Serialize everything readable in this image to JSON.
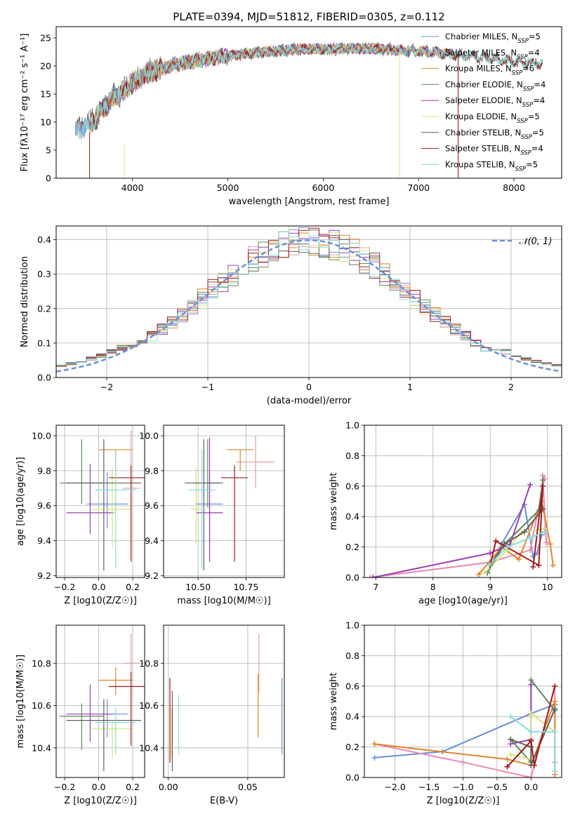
{
  "title": "PLATE=0394, MJD=51812, FIBERID=0305, z=0.112",
  "colors": {
    "Chabrier MILES": "#6a8fd4",
    "Salpeter MILES": "#e0a0a0",
    "Kroupa MILES": "#e0852a",
    "Chabrier ELODIE": "#5c8a5c",
    "Salpeter ELODIE": "#9a3fb0",
    "Kroupa ELODIE": "#dde07a",
    "Chabrier STELIB": "#606060",
    "Salpeter STELIB": "#a01c1c",
    "Kroupa STELIB": "#88dcdc",
    "normal": "#6a8fd4",
    "pink": "#e88ab8"
  },
  "chart_data": [
    {
      "id": "spectrum",
      "type": "line",
      "xlabel": "wavelength [Angstrom, rest frame]",
      "ylabel": "Flux [fλ10⁻¹⁷ erg cm⁻² s⁻¹ A⁻¹]",
      "xlim": [
        3200,
        8500
      ],
      "ylim": [
        0,
        27
      ],
      "xticks": [
        4000,
        5000,
        6000,
        7000,
        8000
      ],
      "yticks": [
        0,
        5,
        10,
        15,
        20,
        25
      ],
      "grid": false,
      "legend_position": "top-right",
      "continuum_x": [
        3400,
        3500,
        3600,
        3700,
        3800,
        3900,
        4000,
        4100,
        4200,
        4300,
        4400,
        4600,
        4800,
        5000,
        5200,
        5400,
        5600,
        5800,
        6000,
        6200,
        6400,
        6600,
        6800,
        7000,
        7200,
        7400,
        7600,
        7800,
        8000,
        8250
      ],
      "continuum_y": [
        8.5,
        9.2,
        10.5,
        12.5,
        14.5,
        15.5,
        17.0,
        18.2,
        19.0,
        19.6,
        20.0,
        20.8,
        21.3,
        21.8,
        22.2,
        22.5,
        22.8,
        23.0,
        23.0,
        23.1,
        23.1,
        23.0,
        22.8,
        22.6,
        22.4,
        22.0,
        21.6,
        21.2,
        20.8,
        20.4
      ],
      "series": [
        {
          "name": "Chabrier MILES, N$_{SSP}$=5",
          "label_main": "Chabrier MILES, N",
          "label_sub": "SSP",
          "label_end": "=5",
          "range": [
            3400,
            7400
          ]
        },
        {
          "name": "Salpeter MILES, N$_{SSP}$=4",
          "label_main": "Salpeter MILES, N",
          "label_sub": "SSP",
          "label_end": "=4",
          "range": [
            3400,
            7400
          ]
        },
        {
          "name": "Kroupa MILES, N$_{SSP}$=6",
          "label_main": "Kroupa MILES, N",
          "label_sub": "SSP",
          "label_end": "=6",
          "range": [
            3550,
            7400
          ]
        },
        {
          "name": "Chabrier ELODIE, N$_{SSP}$=4",
          "label_main": "Chabrier ELODIE, N",
          "label_sub": "SSP",
          "label_end": "=4",
          "range": [
            3900,
            6800
          ]
        },
        {
          "name": "Salpeter ELODIE, N$_{SSP}$=4",
          "label_main": "Salpeter ELODIE, N",
          "label_sub": "SSP",
          "label_end": "=4",
          "range": [
            3900,
            6800
          ]
        },
        {
          "name": "Kroupa ELODIE, N$_{SSP}$=5",
          "label_main": "Kroupa ELODIE, N",
          "label_sub": "SSP",
          "label_end": "=5",
          "range": [
            3900,
            6800
          ]
        },
        {
          "name": "Chabrier STELIB, N$_{SSP}$=5",
          "label_main": "Chabrier STELIB, N",
          "label_sub": "SSP",
          "label_end": "=5",
          "range": [
            3400,
            8300
          ]
        },
        {
          "name": "Salpeter STELIB, N$_{SSP}$=4",
          "label_main": "Salpeter STELIB, N",
          "label_sub": "SSP",
          "label_end": "=4",
          "range": [
            3550,
            8300
          ]
        },
        {
          "name": "Kroupa STELIB, N$_{SSP}$=5",
          "label_main": "Kroupa STELIB, N",
          "label_sub": "SSP",
          "label_end": "=5",
          "range": [
            3400,
            8300
          ]
        }
      ]
    },
    {
      "id": "residuals",
      "type": "histogram",
      "xlabel": "(data-model)/error",
      "ylabel": "Normed distribution",
      "xlim": [
        -2.5,
        2.5
      ],
      "ylim": [
        0,
        0.44
      ],
      "xticks": [
        -2,
        -1,
        0,
        1,
        2
      ],
      "yticks": [
        0.0,
        0.1,
        0.2,
        0.3,
        0.4
      ],
      "grid": true,
      "legend_position": "top-right",
      "legend_label": "𝒩(0, 1)",
      "bin_width": 0.1,
      "series_count": 9
    },
    {
      "id": "age_vs_Z",
      "type": "errorbar",
      "xlabel": "Z [log10(Z/Z☉)]",
      "ylabel": "age  [log10(age/yr)]",
      "xlim": [
        -0.25,
        0.27
      ],
      "ylim": [
        9.19,
        10.06
      ],
      "xticks": [
        -0.2,
        0.0,
        0.2
      ],
      "xticklabels": [
        "−0.2",
        "0.0",
        "0.2"
      ],
      "yticks": [
        9.2,
        9.4,
        9.6,
        9.8,
        10.0
      ],
      "grid": true,
      "points": [
        {
          "series": "Chabrier MILES",
          "x": 0.05,
          "xerr": 0.12,
          "y": 9.61,
          "yerr": [
            0.14,
            0.18
          ]
        },
        {
          "series": "Salpeter MILES",
          "x": 0.19,
          "xerr": 0.05,
          "y": 9.7,
          "yerr": [
            0.37,
            0.33
          ]
        },
        {
          "series": "Kroupa MILES",
          "x": 0.1,
          "xerr": 0.1,
          "y": 9.92,
          "yerr": [
            0.12,
            0.0
          ]
        },
        {
          "series": "Chabrier ELODIE",
          "x": -0.1,
          "xerr": 0.13,
          "y": 9.73,
          "yerr": [
            0.12,
            0.25
          ]
        },
        {
          "series": "Salpeter ELODIE",
          "x": -0.05,
          "xerr": 0.14,
          "y": 9.56,
          "yerr": [
            0.12,
            0.28
          ]
        },
        {
          "series": "Kroupa ELODIE",
          "x": 0.08,
          "xerr": 0.12,
          "y": 9.58,
          "yerr": [
            0.22,
            0.24
          ]
        },
        {
          "series": "Chabrier STELIB",
          "x": 0.03,
          "xerr": 0.22,
          "y": 9.73,
          "yerr": [
            0.5,
            0.25
          ]
        },
        {
          "series": "Salpeter STELIB",
          "x": 0.19,
          "xerr": 0.13,
          "y": 9.76,
          "yerr": [
            0.48,
            0.07
          ]
        },
        {
          "series": "Kroupa STELIB",
          "x": 0.1,
          "xerr": 0.12,
          "y": 9.69,
          "yerr": [
            0.45,
            0.23
          ]
        }
      ]
    },
    {
      "id": "age_vs_mass",
      "type": "errorbar",
      "xlabel": "mass [log10(M/M☉)]",
      "ylabel": "",
      "xlim": [
        10.32,
        10.95
      ],
      "ylim": [
        9.19,
        10.06
      ],
      "xticks": [
        10.5,
        10.75
      ],
      "xticklabels": [
        "10.50",
        "10.75"
      ],
      "yticks": [
        9.2,
        9.4,
        9.6,
        9.8,
        10.0
      ],
      "grid": true,
      "points": [
        {
          "series": "Chabrier MILES",
          "x": 10.56,
          "xerr": 0.07,
          "y": 9.61,
          "yerr": [
            0.22,
            0.18
          ]
        },
        {
          "series": "Salpeter MILES",
          "x": 10.8,
          "xerr": 0.1,
          "y": 9.85,
          "yerr": [
            0.15,
            0.15
          ]
        },
        {
          "series": "Kroupa MILES",
          "x": 10.72,
          "xerr": 0.07,
          "y": 9.92,
          "yerr": [
            0.12,
            0.0
          ]
        },
        {
          "series": "Chabrier ELODIE",
          "x": 10.55,
          "xerr": 0.06,
          "y": 9.73,
          "yerr": [
            0.14,
            0.25
          ]
        },
        {
          "series": "Salpeter ELODIE",
          "x": 10.56,
          "xerr": 0.07,
          "y": 9.56,
          "yerr": [
            0.28,
            0.43
          ]
        },
        {
          "series": "Kroupa ELODIE",
          "x": 10.49,
          "xerr": 0.03,
          "y": 9.58,
          "yerr": [
            0.2,
            0.24
          ]
        },
        {
          "series": "Chabrier STELIB",
          "x": 10.53,
          "xerr": 0.1,
          "y": 9.73,
          "yerr": [
            0.5,
            0.25
          ]
        },
        {
          "series": "Salpeter STELIB",
          "x": 10.69,
          "xerr": 0.07,
          "y": 9.76,
          "yerr": [
            0.48,
            0.07
          ]
        },
        {
          "series": "Kroupa STELIB",
          "x": 10.52,
          "xerr": 0.07,
          "y": 9.69,
          "yerr": [
            0.45,
            0.23
          ]
        }
      ]
    },
    {
      "id": "weight_vs_age",
      "type": "line",
      "xlabel": "age  [log10(age/yr)]",
      "ylabel": "mass weight",
      "xlim": [
        6.8,
        10.25
      ],
      "ylim": [
        0,
        1.0
      ],
      "xticks": [
        7,
        8,
        9,
        10
      ],
      "yticks": [
        0.0,
        0.2,
        0.4,
        0.6,
        0.8,
        1.0
      ],
      "grid": true,
      "series": [
        {
          "series": "Chabrier MILES",
          "x": [
            8.95,
            9.2,
            9.6,
            9.75,
            9.82,
            9.9
          ],
          "y": [
            0.03,
            0.22,
            0.48,
            0.14,
            0.16,
            0.28
          ]
        },
        {
          "series": "pink",
          "x": [
            6.9,
            9.0,
            9.7,
            9.95,
            9.92,
            9.98
          ],
          "y": [
            0.0,
            0.1,
            0.18,
            0.65,
            0.67,
            0.23
          ]
        },
        {
          "series": "Kroupa MILES",
          "x": [
            8.8,
            9.2,
            9.5,
            9.9,
            10.05,
            10.1
          ],
          "y": [
            0.02,
            0.2,
            0.12,
            0.5,
            0.22,
            0.08
          ]
        },
        {
          "series": "Chabrier ELODIE",
          "x": [
            8.95,
            9.25,
            9.85,
            9.92
          ],
          "y": [
            0.03,
            0.22,
            0.44,
            0.64
          ]
        },
        {
          "series": "Salpeter ELODIE",
          "x": [
            6.95,
            9.0,
            9.35,
            9.7
          ],
          "y": [
            0.0,
            0.16,
            0.22,
            0.61
          ]
        },
        {
          "series": "Kroupa ELODIE",
          "x": [
            8.9,
            9.3,
            9.55,
            9.95
          ],
          "y": [
            0.03,
            0.18,
            0.3,
            0.32
          ]
        },
        {
          "series": "Chabrier STELIB",
          "x": [
            9.0,
            9.25,
            9.6,
            9.92
          ],
          "y": [
            0.08,
            0.22,
            0.3,
            0.45
          ]
        },
        {
          "series": "Salpeter STELIB",
          "x": [
            9.0,
            9.1,
            9.85,
            9.92,
            9.75
          ],
          "y": [
            0.08,
            0.24,
            0.08,
            0.6,
            0.07
          ]
        },
        {
          "series": "Kroupa STELIB",
          "x": [
            8.98,
            9.3,
            9.7,
            9.95
          ],
          "y": [
            0.08,
            0.2,
            0.26,
            0.3
          ]
        }
      ]
    },
    {
      "id": "mass_vs_Z",
      "type": "errorbar",
      "xlabel": "Z [log10(Z/Z☉)]",
      "ylabel": "mass [log10(M/M☉)]",
      "xlim": [
        -0.25,
        0.27
      ],
      "ylim": [
        10.26,
        10.98
      ],
      "xticks": [
        -0.2,
        0.0,
        0.2
      ],
      "xticklabels": [
        "−0.2",
        "0.0",
        "0.2"
      ],
      "yticks": [
        10.4,
        10.6,
        10.8
      ],
      "grid": true,
      "points": [
        {
          "series": "Chabrier MILES",
          "x": 0.05,
          "xerr": 0.12,
          "y": 10.56,
          "yerr": [
            0.11,
            0.07
          ]
        },
        {
          "series": "Salpeter MILES",
          "x": 0.19,
          "xerr": 0.05,
          "y": 10.8,
          "yerr": [
            0.14,
            0.14
          ]
        },
        {
          "series": "Kroupa MILES",
          "x": 0.1,
          "xerr": 0.1,
          "y": 10.72,
          "yerr": [
            0.07,
            0.06
          ]
        },
        {
          "series": "Chabrier ELODIE",
          "x": -0.1,
          "xerr": 0.13,
          "y": 10.55,
          "yerr": [
            0.16,
            0.06
          ]
        },
        {
          "series": "Salpeter ELODIE",
          "x": -0.05,
          "xerr": 0.14,
          "y": 10.56,
          "yerr": [
            0.13,
            0.14
          ]
        },
        {
          "series": "Kroupa ELODIE",
          "x": 0.08,
          "xerr": 0.12,
          "y": 10.49,
          "yerr": [
            0.14,
            0.03
          ]
        },
        {
          "series": "Chabrier STELIB",
          "x": 0.03,
          "xerr": 0.22,
          "y": 10.53,
          "yerr": [
            0.24,
            0.1
          ]
        },
        {
          "series": "Salpeter STELIB",
          "x": 0.19,
          "xerr": 0.13,
          "y": 10.69,
          "yerr": [
            0.28,
            0.07
          ]
        },
        {
          "series": "Kroupa STELIB",
          "x": 0.1,
          "xerr": 0.12,
          "y": 10.52,
          "yerr": [
            0.15,
            0.07
          ]
        }
      ]
    },
    {
      "id": "mass_vs_EBV",
      "type": "errorbar",
      "xlabel": "E(B-V)",
      "ylabel": "",
      "xlim": [
        -0.003,
        0.073
      ],
      "ylim": [
        10.26,
        10.98
      ],
      "xticks": [
        0.0,
        0.05
      ],
      "xticklabels": [
        "0.00",
        "0.05"
      ],
      "yticks": [
        10.4,
        10.6,
        10.8
      ],
      "grid": true,
      "points": [
        {
          "series": "Chabrier MILES",
          "x": 0.0715,
          "y": 10.56,
          "yerr": [
            0.19,
            0.17
          ]
        },
        {
          "series": "Salpeter MILES",
          "x": 0.057,
          "y": 10.8,
          "yerr": [
            0.14,
            0.14
          ]
        },
        {
          "series": "Kroupa MILES",
          "x": 0.0565,
          "y": 10.6,
          "yerr": [
            0.15,
            0.15
          ]
        },
        {
          "series": "Kroupa ELODIE",
          "x": 0.002,
          "y": 10.49,
          "yerr": [
            0.14,
            0.1
          ]
        },
        {
          "series": "Chabrier STELIB",
          "x": 0.0025,
          "y": 10.53,
          "yerr": [
            0.24,
            0.14
          ]
        },
        {
          "series": "Salpeter STELIB",
          "x": 0.001,
          "y": 10.6,
          "yerr": [
            0.27,
            0.13
          ]
        },
        {
          "series": "Kroupa STELIB",
          "x": 0.0065,
          "y": 10.52,
          "yerr": [
            0.15,
            0.13
          ]
        }
      ]
    },
    {
      "id": "weight_vs_Z",
      "type": "line",
      "xlabel": "Z [log10(Z/Z☉)]",
      "ylabel": "mass weight",
      "xlim": [
        -2.45,
        0.45
      ],
      "ylim": [
        0,
        1.0
      ],
      "xticks": [
        -2.0,
        -1.5,
        -1.0,
        -0.5,
        0.0
      ],
      "xticklabels": [
        "−2.0",
        "−1.5",
        "−1.0",
        "−0.5",
        "0.0"
      ],
      "yticks": [
        0.0,
        0.2,
        0.4,
        0.6,
        0.8,
        1.0
      ],
      "grid": true,
      "series": [
        {
          "series": "Chabrier MILES",
          "x": [
            -2.3,
            -1.3,
            0.0,
            0.35
          ],
          "y": [
            0.13,
            0.17,
            0.42,
            0.48
          ]
        },
        {
          "series": "pink",
          "x": [
            -2.3,
            -1.0,
            0.0,
            0.35,
            0.35
          ],
          "y": [
            0.22,
            0.1,
            0.0,
            0.6,
            0.1
          ]
        },
        {
          "series": "Kroupa MILES",
          "x": [
            -2.3,
            -0.35,
            0.0,
            0.35,
            0.35
          ],
          "y": [
            0.22,
            0.12,
            0.08,
            0.5,
            0.02
          ]
        },
        {
          "series": "Chabrier ELODIE",
          "x": [
            -0.3,
            0.0,
            0.0,
            0.35
          ],
          "y": [
            0.25,
            0.1,
            0.64,
            0.44
          ]
        },
        {
          "series": "Salpeter ELODIE",
          "x": [
            -0.3,
            0.0,
            0.0
          ],
          "y": [
            0.22,
            0.25,
            0.61
          ]
        },
        {
          "series": "Kroupa ELODIE",
          "x": [
            -0.3,
            0.0,
            0.0,
            0.35
          ],
          "y": [
            0.15,
            0.12,
            0.42,
            0.3
          ]
        },
        {
          "series": "Chabrier STELIB",
          "x": [
            -0.3,
            0.0,
            0.0,
            0.35
          ],
          "y": [
            0.25,
            0.2,
            0.08,
            0.45
          ]
        },
        {
          "series": "Salpeter STELIB",
          "x": [
            -0.35,
            0.0,
            0.05,
            0.35
          ],
          "y": [
            0.07,
            0.24,
            0.08,
            0.6
          ]
        },
        {
          "series": "Kroupa STELIB",
          "x": [
            -0.3,
            0.0,
            0.35,
            0.35
          ],
          "y": [
            0.4,
            0.3,
            0.3,
            0.04
          ]
        }
      ]
    }
  ]
}
